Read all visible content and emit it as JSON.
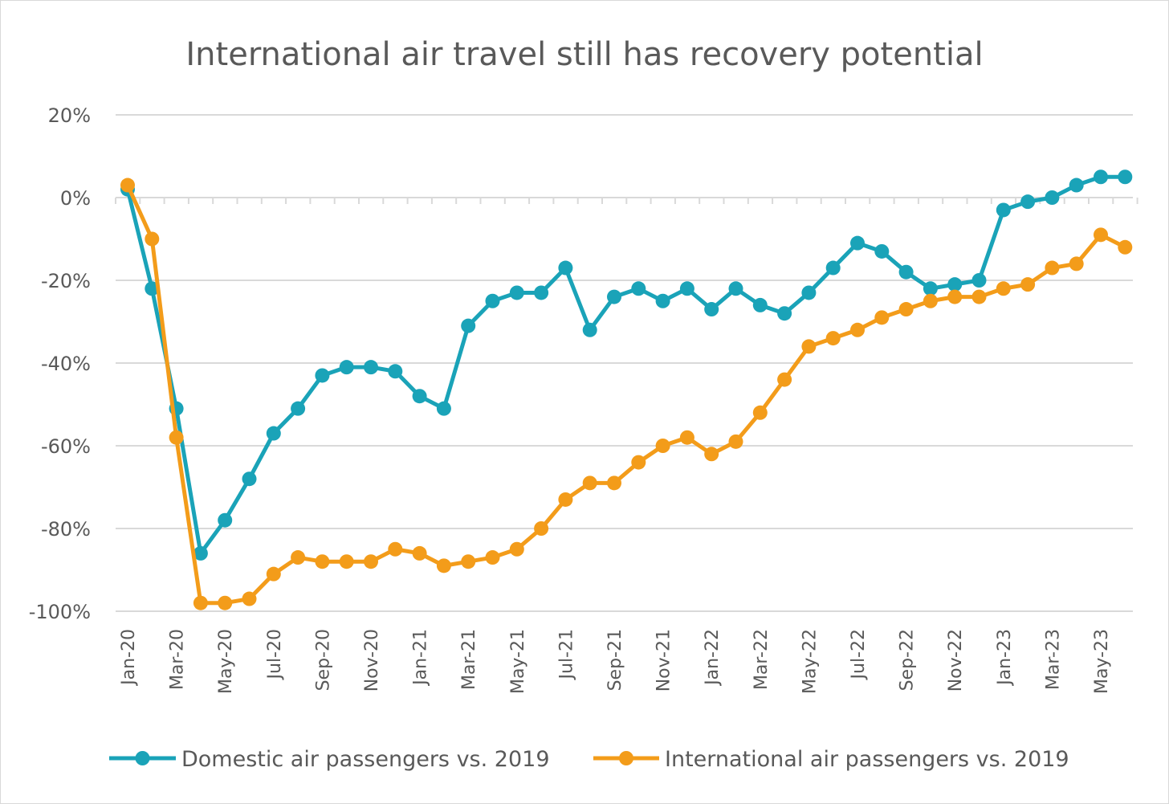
{
  "chart_data": {
    "type": "line",
    "title": "International air travel still has recovery potential",
    "xlabel": "",
    "ylabel": "",
    "ylim": [
      -100,
      20
    ],
    "y_ticks": [
      20,
      0,
      -20,
      -40,
      -60,
      -80,
      -100
    ],
    "y_tick_labels": [
      "20%",
      "0%",
      "-20%",
      "-40%",
      "-60%",
      "-80%",
      "-100%"
    ],
    "x": [
      "Jan-20",
      "Feb-20",
      "Mar-20",
      "Apr-20",
      "May-20",
      "Jun-20",
      "Jul-20",
      "Aug-20",
      "Sep-20",
      "Oct-20",
      "Nov-20",
      "Dec-20",
      "Jan-21",
      "Feb-21",
      "Mar-21",
      "Apr-21",
      "May-21",
      "Jun-21",
      "Jul-21",
      "Aug-21",
      "Sep-21",
      "Oct-21",
      "Nov-21",
      "Dec-21",
      "Jan-22",
      "Feb-22",
      "Mar-22",
      "Apr-22",
      "May-22",
      "Jun-22",
      "Jul-22",
      "Aug-22",
      "Sep-22",
      "Oct-22",
      "Nov-22",
      "Dec-22",
      "Jan-23",
      "Feb-23",
      "Mar-23",
      "Apr-23",
      "May-23",
      "Jun-23"
    ],
    "x_tick_labels": [
      "Jan-20",
      "Mar-20",
      "May-20",
      "Jul-20",
      "Sep-20",
      "Nov-20",
      "Jan-21",
      "Mar-21",
      "May-21",
      "Jul-21",
      "Sep-21",
      "Nov-21",
      "Jan-22",
      "Mar-22",
      "May-22",
      "Jul-22",
      "Sep-22",
      "Nov-22",
      "Jan-23",
      "Mar-23",
      "May-23"
    ],
    "series": [
      {
        "name": "Domestic air passengers vs. 2019",
        "color": "#1aa3b8",
        "values": [
          2,
          -22,
          -51,
          -86,
          -78,
          -68,
          -57,
          -51,
          -43,
          -41,
          -41,
          -42,
          -48,
          -51,
          -31,
          -25,
          -23,
          -23,
          -17,
          -32,
          -24,
          -22,
          -25,
          -22,
          -27,
          -22,
          -26,
          -28,
          -23,
          -17,
          -11,
          -13,
          -18,
          -22,
          -21,
          -20,
          -3,
          -1,
          0,
          3,
          5,
          5
        ]
      },
      {
        "name": "International air passengers vs. 2019",
        "color": "#f39c1a",
        "values": [
          3,
          -10,
          -58,
          -98,
          -98,
          -97,
          -91,
          -87,
          -88,
          -88,
          -88,
          -85,
          -86,
          -89,
          -88,
          -87,
          -85,
          -80,
          -73,
          -69,
          -69,
          -64,
          -60,
          -58,
          -62,
          -59,
          -52,
          -44,
          -36,
          -34,
          -32,
          -29,
          -27,
          -25,
          -24,
          -24,
          -22,
          -21,
          -17,
          -16,
          -9,
          -12
        ]
      }
    ],
    "grid": true,
    "legend_position": "bottom"
  }
}
